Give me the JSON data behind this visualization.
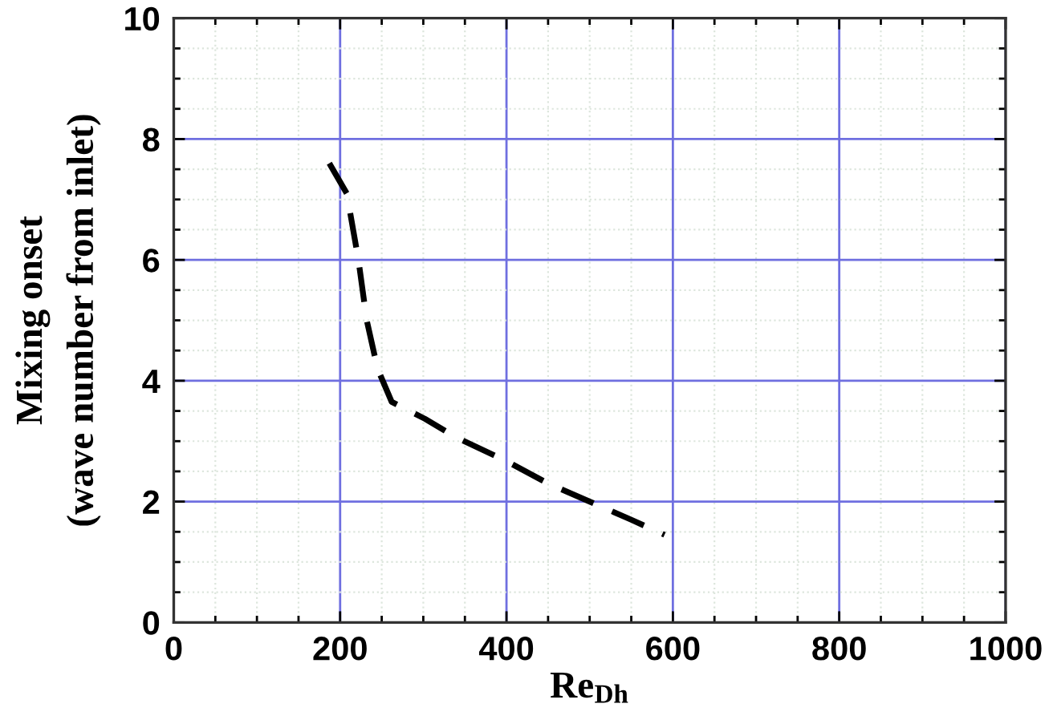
{
  "chart_data": {
    "type": "line",
    "xlabel": "Re$_{Dh}$",
    "ylabel": "Mixing onset\n(wave number from inlet)",
    "series": [
      {
        "color": "#000000",
        "x": [
          187,
          208,
          222,
          232,
          245,
          262,
          302,
          340,
          400,
          450,
          500,
          550,
          590
        ],
        "values": [
          7.6,
          7.1,
          6.0,
          5.0,
          4.2,
          3.65,
          3.37,
          3.06,
          2.67,
          2.3,
          2.0,
          1.7,
          1.45
        ]
      }
    ],
    "line_style": "dashed",
    "xlim": [
      0,
      1000
    ],
    "xticks": [
      0,
      200,
      400,
      600,
      800,
      1000
    ],
    "ylim": [
      0,
      10
    ],
    "yticks": [
      0,
      2,
      4,
      6,
      8,
      10
    ],
    "grid": true
  }
}
